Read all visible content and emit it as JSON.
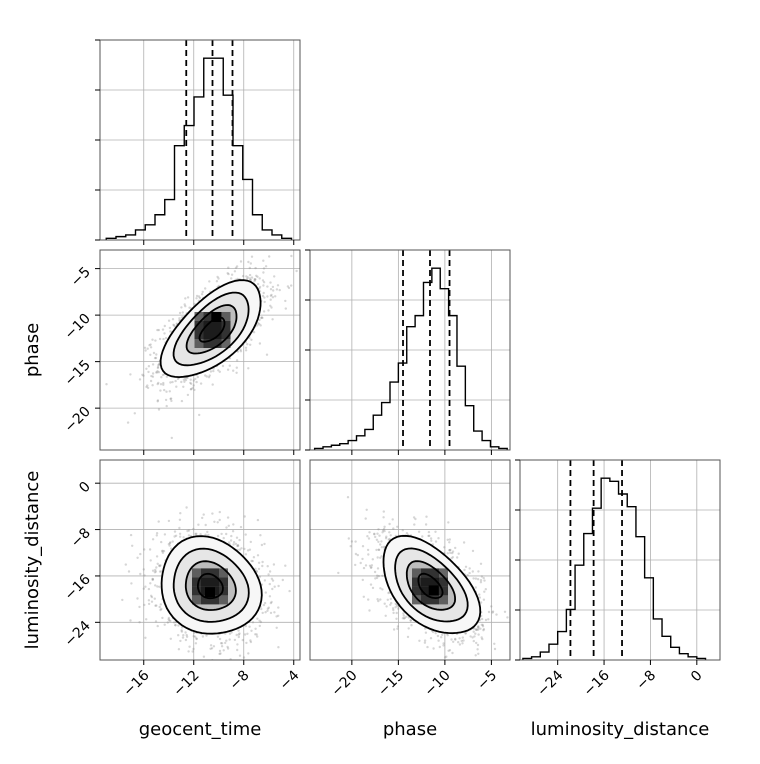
{
  "chart_data": {
    "type": "corner",
    "parameters": [
      "geocent_time",
      "phase",
      "luminosity_distance"
    ],
    "grid": true,
    "colors": {
      "axes": "#000000",
      "grid": "#b0b0b0",
      "samples": "#8a8a8a"
    },
    "ticks": {
      "geocent_time": {
        "values": [
          -16,
          -12,
          -8,
          -4
        ],
        "labels": [
          "−16",
          "−12",
          "−8",
          "−4"
        ],
        "range": [
          -19.5,
          -3.5
        ]
      },
      "phase": {
        "values": [
          -20,
          -15,
          -10,
          -5
        ],
        "labels": [
          "−20",
          "−15",
          "−10",
          "−5"
        ],
        "range": [
          -24.5,
          -3.0
        ]
      },
      "luminosity_distance": {
        "values": [
          -24,
          -16,
          -8,
          0
        ],
        "labels": [
          "−24",
          "−16",
          "−8",
          "0"
        ],
        "range": [
          -30.5,
          4.0
        ]
      }
    },
    "diagonal": [
      {
        "parameter": "geocent_time",
        "bin_edges": [
          -19,
          -18.22,
          -17.44,
          -16.66,
          -15.88,
          -15.1,
          -14.32,
          -13.54,
          -12.76,
          -11.98,
          -11.2,
          -10.42,
          -9.64,
          -8.86,
          -8.08,
          -7.3,
          -6.52,
          -5.74,
          -4.96,
          -4.18
        ],
        "counts": [
          1,
          2,
          3,
          6,
          9,
          15,
          24,
          56,
          68,
          85,
          108,
          108,
          86,
          56,
          36,
          15,
          6,
          3,
          1
        ],
        "quantiles": [
          -12.6,
          -10.5,
          -8.9
        ]
      },
      {
        "parameter": "phase",
        "bin_edges": [
          -24,
          -23.1,
          -22.2,
          -21.3,
          -20.4,
          -19.5,
          -18.6,
          -17.7,
          -16.8,
          -15.9,
          -15.0,
          -14.1,
          -13.2,
          -12.3,
          -11.4,
          -10.5,
          -9.6,
          -8.7,
          -7.8,
          -6.9,
          -6.0,
          -5.1,
          -4.2,
          -3.3
        ],
        "counts": [
          1,
          2,
          3,
          4,
          6,
          9,
          13,
          22,
          30,
          43,
          55,
          78,
          85,
          106,
          115,
          102,
          85,
          53,
          28,
          12,
          6,
          2,
          1
        ],
        "quantiles": [
          -14.5,
          -11.6,
          -9.5
        ]
      },
      {
        "parameter": "luminosity_distance",
        "bin_edges": [
          -30,
          -28.5,
          -27,
          -25.5,
          -24,
          -22.5,
          -21,
          -19.5,
          -18,
          -16.5,
          -15,
          -13.5,
          -12,
          -10.5,
          -9,
          -7.5,
          -6,
          -4.5,
          -3,
          -1.5,
          0,
          1.5
        ],
        "counts": [
          1,
          2,
          5,
          10,
          18,
          32,
          60,
          80,
          96,
          115,
          113,
          105,
          97,
          78,
          52,
          26,
          15,
          8,
          4,
          2,
          1
        ],
        "quantiles": [
          -21.8,
          -17.8,
          -12.9
        ]
      }
    ],
    "pairs": [
      {
        "x": "geocent_time",
        "y": "phase",
        "center": [
          -10.5,
          -11.6
        ],
        "sigma": [
          2.0,
          2.6
        ],
        "correlation": 0.62,
        "density_peak": [
          -10.2,
          -10.2
        ],
        "contour_levels_sigma": [
          0.5,
          1.0,
          1.5,
          2.0
        ]
      },
      {
        "x": "geocent_time",
        "y": "luminosity_distance",
        "center": [
          -10.7,
          -17.8
        ],
        "sigma": [
          2.0,
          4.2
        ],
        "correlation": -0.12,
        "density_peak": [
          -10.7,
          -18.8
        ],
        "contour_levels_sigma": [
          0.5,
          1.0,
          1.5,
          2.0
        ]
      },
      {
        "x": "phase",
        "y": "luminosity_distance",
        "center": [
          -11.6,
          -17.8
        ],
        "sigma": [
          2.6,
          4.2
        ],
        "correlation": -0.5,
        "density_peak": [
          -11.2,
          -18.5
        ],
        "contour_levels_sigma": [
          0.5,
          1.0,
          1.5,
          2.0
        ]
      }
    ]
  }
}
